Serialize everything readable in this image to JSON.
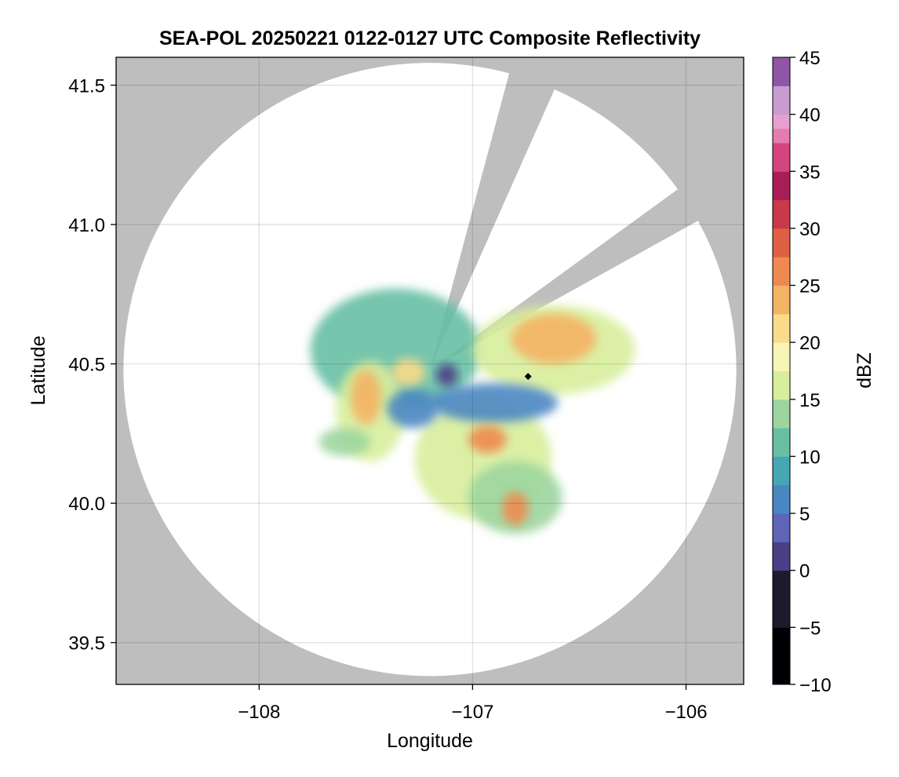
{
  "chart_data": {
    "type": "heatmap",
    "title": "SEA-POL 20250221 0122-0127 UTC Composite Reflectivity",
    "xlabel": "Longitude",
    "ylabel": "Latitude",
    "xlim": [
      -108.67,
      -105.73
    ],
    "ylim": [
      39.35,
      41.6
    ],
    "xticks": [
      -108,
      -107,
      -106
    ],
    "xtick_labels": [
      "−108",
      "−107",
      "−106"
    ],
    "yticks": [
      39.5,
      40.0,
      40.5,
      41.0,
      41.5
    ],
    "ytick_labels": [
      "39.5",
      "40.0",
      "40.5",
      "41.0",
      "41.5"
    ],
    "grid": true,
    "background_color": "#bebebe",
    "radar_site": {
      "lon": -107.2,
      "lat": 40.48
    },
    "radar_range_deg_lat": 1.1,
    "blocked_sectors_deg_from_north": [
      [
        15,
        24
      ],
      [
        54,
        61
      ]
    ],
    "marker": {
      "lon": -106.74,
      "lat": 40.455,
      "shape": "diamond",
      "color": "#000000"
    },
    "colorbar": {
      "label": "dBZ",
      "min": -10,
      "max": 45,
      "ticks": [
        -10,
        -5,
        0,
        5,
        10,
        15,
        20,
        25,
        30,
        35,
        40,
        45
      ],
      "tick_labels": [
        "−10",
        "−5",
        "0",
        "5",
        "10",
        "15",
        "20",
        "25",
        "30",
        "35",
        "40",
        "45"
      ],
      "colormap": "Spectral_r (dark) with purple top",
      "stops": [
        [
          -10,
          "#000004"
        ],
        [
          -5,
          "#1d1a2e"
        ],
        [
          0,
          "#4b3f86"
        ],
        [
          2.5,
          "#5e64b8"
        ],
        [
          5,
          "#4a87c2"
        ],
        [
          7.5,
          "#46a6b4"
        ],
        [
          10,
          "#67bfa4"
        ],
        [
          12.5,
          "#9cd59f"
        ],
        [
          15,
          "#d7ee9b"
        ],
        [
          17.5,
          "#f7f5b5"
        ],
        [
          20,
          "#f9db8a"
        ],
        [
          22.5,
          "#f5b364"
        ],
        [
          25,
          "#ee8a4f"
        ],
        [
          27.5,
          "#df5f45"
        ],
        [
          30,
          "#c8394a"
        ],
        [
          32.5,
          "#a81e57"
        ],
        [
          35,
          "#d4447d"
        ],
        [
          37.5,
          "#e57cad"
        ],
        [
          39,
          "#e7a0cd"
        ],
        [
          40,
          "#c89bd2"
        ],
        [
          42,
          "#8f55a6"
        ],
        [
          45,
          "#3e0848"
        ]
      ]
    },
    "echo_regions": [
      {
        "lon": -107.36,
        "lat": 40.55,
        "rx": 0.4,
        "ry": 0.22,
        "dbz": 12
      },
      {
        "lon": -106.62,
        "lat": 40.55,
        "rx": 0.38,
        "ry": 0.16,
        "dbz": 15
      },
      {
        "lon": -106.95,
        "lat": 40.16,
        "rx": 0.32,
        "ry": 0.22,
        "dbz": 15
      },
      {
        "lon": -106.8,
        "lat": 40.02,
        "rx": 0.22,
        "ry": 0.13,
        "dbz": 14
      },
      {
        "lon": -107.48,
        "lat": 40.33,
        "rx": 0.16,
        "ry": 0.18,
        "dbz": 16
      },
      {
        "lon": -107.6,
        "lat": 40.22,
        "rx": 0.12,
        "ry": 0.05,
        "dbz": 14
      },
      {
        "lon": -106.9,
        "lat": 40.36,
        "rx": 0.3,
        "ry": 0.07,
        "dbz": 6
      },
      {
        "lon": -107.28,
        "lat": 40.34,
        "rx": 0.12,
        "ry": 0.07,
        "dbz": 5
      },
      {
        "lon": -107.12,
        "lat": 40.46,
        "rx": 0.05,
        "ry": 0.04,
        "dbz": 0
      },
      {
        "lon": -106.62,
        "lat": 40.59,
        "rx": 0.2,
        "ry": 0.09,
        "dbz": 23
      },
      {
        "lon": -107.5,
        "lat": 40.38,
        "rx": 0.07,
        "ry": 0.1,
        "dbz": 24
      },
      {
        "lon": -106.93,
        "lat": 40.23,
        "rx": 0.09,
        "ry": 0.05,
        "dbz": 25
      },
      {
        "lon": -106.8,
        "lat": 39.98,
        "rx": 0.06,
        "ry": 0.06,
        "dbz": 27
      },
      {
        "lon": -107.3,
        "lat": 40.47,
        "rx": 0.08,
        "ry": 0.05,
        "dbz": 21
      }
    ]
  }
}
